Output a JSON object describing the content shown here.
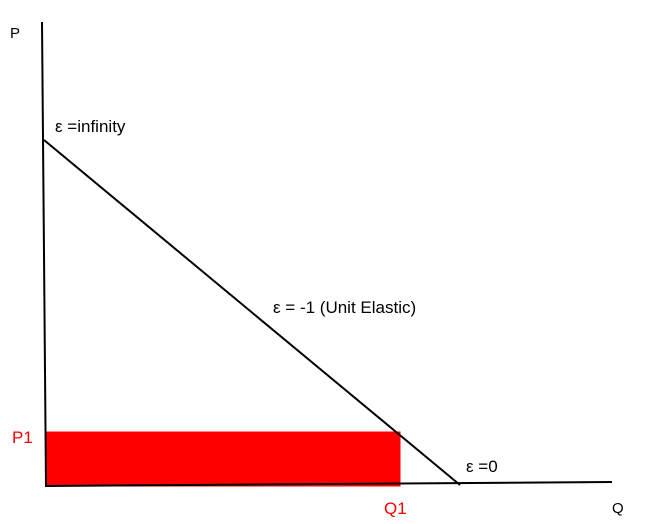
{
  "axes": {
    "y_label": "P",
    "x_label": "Q"
  },
  "demand_curve": {
    "top_label": "ε =infinity",
    "middle_label": "ε = -1 (Unit Elastic)",
    "bottom_label": "ε =0"
  },
  "point": {
    "price_label": "P1",
    "quantity_label": "Q1"
  },
  "colors": {
    "line": "#000000",
    "revenue_fill": "#ff0000",
    "point_labels": "#ff0000"
  }
}
